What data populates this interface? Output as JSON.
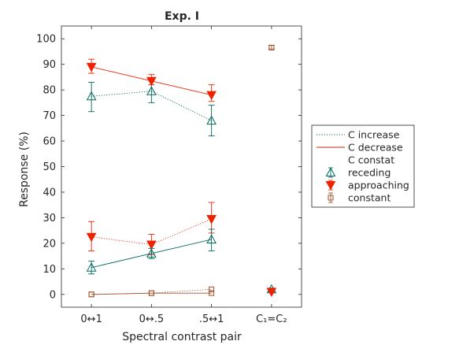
{
  "chart_data": {
    "type": "line",
    "title": "Exp. I",
    "xlabel": "Spectral contrast pair",
    "ylabel": "Response (%)",
    "ylim": [
      -5,
      105
    ],
    "yticks": [
      0,
      10,
      20,
      30,
      40,
      50,
      60,
      70,
      80,
      90,
      100
    ],
    "categories": [
      "0↔1",
      "0↔.5",
      ".5↔1",
      "C₁=C₂"
    ],
    "grid": false,
    "legend_position": "right",
    "legend": {
      "line_entries": [
        {
          "label": "C increase",
          "style": "dotted",
          "color": "#00695c"
        },
        {
          "label": "C decrease",
          "style": "solid",
          "color": "#c62a0a"
        }
      ],
      "group_heading": "C constat",
      "marker_entries": [
        {
          "label": "receding",
          "marker": "triangle-up",
          "color": "#00695c"
        },
        {
          "label": "approaching",
          "marker": "triangle-down",
          "color": "#ee2200"
        },
        {
          "label": "constant",
          "marker": "square",
          "color": "#a0522d"
        }
      ]
    },
    "series": [
      {
        "name": "receding",
        "group": "C increase",
        "line": "dotted",
        "marker": "triangle-up",
        "color": "#00695c",
        "x": [
          1,
          2,
          3
        ],
        "values": [
          77.5,
          79.5,
          68.0
        ],
        "err_low": [
          71.5,
          75.0,
          62.0
        ],
        "err_high": [
          83.0,
          84.0,
          74.0
        ]
      },
      {
        "name": "approaching",
        "group": "C decrease",
        "line": "solid",
        "marker": "triangle-down",
        "color": "#ee2200",
        "x": [
          1,
          2,
          3
        ],
        "values": [
          89.0,
          83.5,
          78.0
        ],
        "err_low": [
          86.5,
          82.0,
          75.5
        ],
        "err_high": [
          92.0,
          86.0,
          82.0
        ]
      },
      {
        "name": "approaching",
        "group": "C increase",
        "line": "dotted",
        "marker": "triangle-down",
        "color": "#ee2200",
        "x": [
          1,
          2,
          3
        ],
        "values": [
          22.5,
          19.5,
          29.5
        ],
        "err_low": [
          17.0,
          15.5,
          24.0
        ],
        "err_high": [
          28.5,
          23.5,
          36.0
        ]
      },
      {
        "name": "receding",
        "group": "C decrease",
        "line": "solid",
        "marker": "triangle-up",
        "color": "#00695c",
        "x": [
          1,
          2,
          3
        ],
        "values": [
          10.5,
          16.0,
          21.5
        ],
        "err_low": [
          8.0,
          14.0,
          17.0
        ],
        "err_high": [
          13.0,
          18.0,
          25.5
        ]
      },
      {
        "name": "constant",
        "group": "C increase",
        "line": "dotted",
        "marker": "square",
        "color": "#a0522d",
        "x": [
          1,
          2,
          3
        ],
        "values": [
          0.0,
          0.5,
          2.0
        ]
      },
      {
        "name": "constant",
        "group": "C decrease",
        "line": "solid",
        "marker": "square",
        "color": "#a0522d",
        "x": [
          1,
          2,
          3
        ],
        "values": [
          0.0,
          0.5,
          0.5
        ]
      },
      {
        "name": "receding",
        "group": "C constat",
        "line": "none",
        "marker": "triangle-up",
        "color": "#00695c",
        "x": [
          4
        ],
        "values": [
          2.0
        ],
        "err_low": [
          1.0
        ],
        "err_high": [
          2.5
        ]
      },
      {
        "name": "approaching",
        "group": "C constat",
        "line": "none",
        "marker": "triangle-down",
        "color": "#ee2200",
        "x": [
          4
        ],
        "values": [
          1.0
        ]
      },
      {
        "name": "constant",
        "group": "C constat",
        "line": "none",
        "marker": "square",
        "color": "#a0522d",
        "x": [
          4
        ],
        "values": [
          96.5
        ],
        "err_low": [
          96.0
        ],
        "err_high": [
          97.5
        ]
      }
    ]
  }
}
